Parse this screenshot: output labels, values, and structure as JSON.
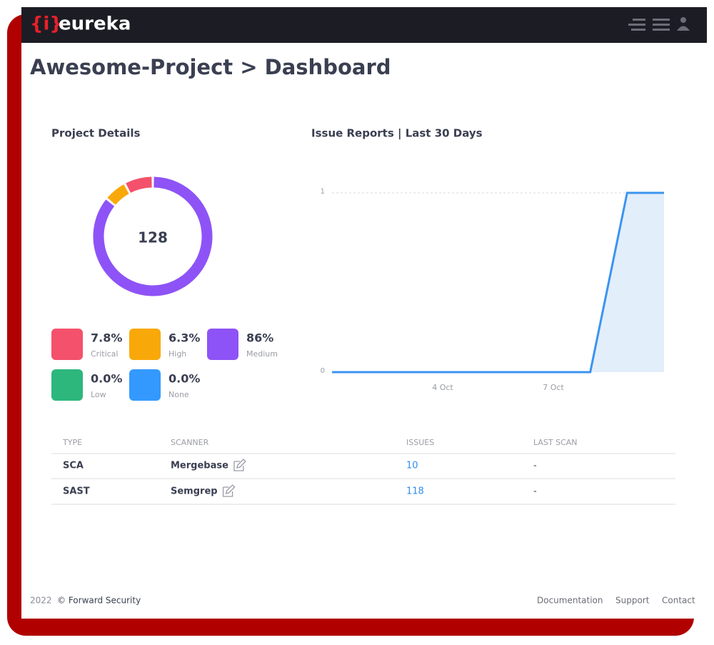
{
  "header": {
    "logo_icon": "{i}",
    "logo_text": "eureka"
  },
  "page_title": "Awesome-Project > Dashboard",
  "project_details": {
    "title": "Project Details",
    "chart_data": {
      "type": "pie",
      "center_label": 128,
      "categories": [
        "Critical",
        "High",
        "Medium",
        "Low",
        "None"
      ],
      "values": [
        7.8,
        6.3,
        86,
        0.0,
        0.0
      ],
      "value_labels": [
        "7.8%",
        "6.3%",
        "86%",
        "0.0%",
        "0.0%"
      ],
      "colors": [
        "#f4516c",
        "#f9a80a",
        "#8e53f6",
        "#2db77d",
        "#3399ff"
      ]
    }
  },
  "issue_reports": {
    "title": "Issue Reports | Last 30 Days",
    "chart_data": {
      "type": "line",
      "categories": [
        null,
        null,
        null,
        "4 Oct",
        null,
        null,
        "7 Oct",
        null,
        null,
        null
      ],
      "values": [
        0,
        0,
        0,
        0,
        0,
        0,
        0,
        0,
        1,
        1
      ],
      "color": "#3b94f0",
      "area_color": "#e3eefb",
      "ylim": [
        0,
        1
      ],
      "yticks": [
        0,
        1
      ],
      "grid": true
    }
  },
  "table": {
    "headers": [
      "TYPE",
      "SCANNER",
      "ISSUES",
      "LAST SCAN"
    ],
    "rows": [
      [
        "SCA",
        "Mergebase",
        "10",
        "-"
      ],
      [
        "SAST",
        "Semgrep",
        "118",
        "-"
      ]
    ]
  },
  "footer": {
    "year": "2022",
    "company": "© Forward Security",
    "links": [
      "Documentation",
      "Support",
      "Contact"
    ]
  }
}
